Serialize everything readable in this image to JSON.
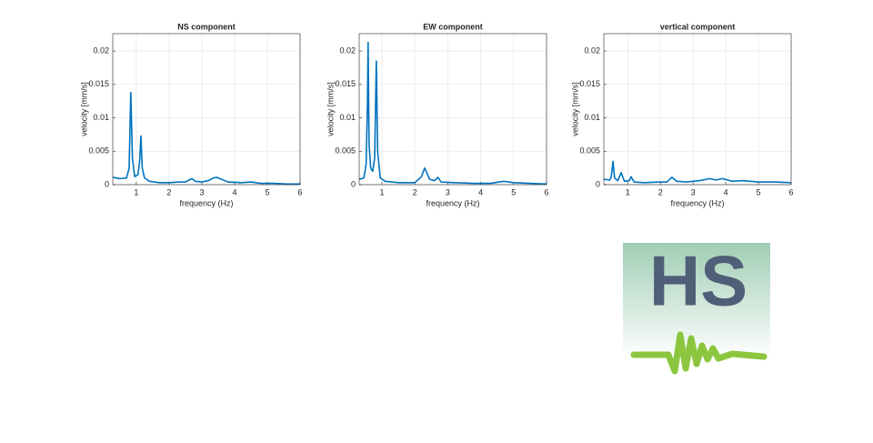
{
  "chart_data": [
    {
      "type": "line",
      "title": "NS component",
      "xlabel": "frequency (Hz)",
      "ylabel": "velocity [mm/s]",
      "x": [
        0.28,
        0.5,
        0.7,
        0.78,
        0.83,
        0.88,
        0.95,
        1.05,
        1.1,
        1.14,
        1.18,
        1.25,
        1.4,
        1.7,
        2.0,
        2.3,
        2.5,
        2.65,
        2.7,
        2.8,
        3.0,
        3.2,
        3.35,
        3.45,
        3.55,
        3.8,
        4.2,
        4.5,
        4.8,
        5.2,
        5.6,
        6.0
      ],
      "values": [
        0.0011,
        0.0009,
        0.001,
        0.0025,
        0.0138,
        0.004,
        0.0012,
        0.0015,
        0.0035,
        0.0073,
        0.0025,
        0.001,
        0.0005,
        0.0003,
        0.0003,
        0.0004,
        0.0004,
        0.0008,
        0.0009,
        0.0005,
        0.0004,
        0.0006,
        0.001,
        0.0011,
        0.0009,
        0.0004,
        0.0003,
        0.0004,
        0.0002,
        0.0002,
        0.0001,
        0.0001
      ],
      "color": "#0072bd",
      "xlim": [
        0.28,
        6
      ],
      "ylim": [
        0,
        0.0226
      ],
      "xticks": [
        1,
        2,
        3,
        4,
        5,
        6
      ],
      "yticks": [
        0,
        0.005,
        0.01,
        0.015,
        0.02
      ],
      "grid": true
    },
    {
      "type": "line",
      "title": "EW component",
      "xlabel": "frequency (Hz)",
      "ylabel": "velocity [mm/s]",
      "x": [
        0.31,
        0.45,
        0.52,
        0.56,
        0.58,
        0.61,
        0.66,
        0.72,
        0.78,
        0.83,
        0.87,
        0.95,
        1.1,
        1.5,
        2.0,
        2.2,
        2.3,
        2.45,
        2.6,
        2.7,
        2.8,
        3.2,
        3.8,
        4.3,
        4.7,
        5.0,
        5.5,
        6.0
      ],
      "values": [
        0.0008,
        0.001,
        0.003,
        0.012,
        0.0213,
        0.006,
        0.0025,
        0.002,
        0.004,
        0.0185,
        0.005,
        0.001,
        0.0005,
        0.0003,
        0.0003,
        0.0012,
        0.0025,
        0.0008,
        0.0006,
        0.0011,
        0.0004,
        0.0003,
        0.0002,
        0.0002,
        0.0005,
        0.0003,
        0.0002,
        0.0001
      ],
      "color": "#0072bd",
      "xlim": [
        0.31,
        6
      ],
      "ylim": [
        0,
        0.0226
      ],
      "xticks": [
        1,
        2,
        3,
        4,
        5,
        6
      ],
      "yticks": [
        0,
        0.005,
        0.01,
        0.015,
        0.02
      ],
      "grid": true
    },
    {
      "type": "line",
      "title": "vertical component",
      "xlabel": "frequency (Hz)",
      "ylabel": "velocity [mm/s]",
      "x": [
        0.27,
        0.45,
        0.5,
        0.55,
        0.6,
        0.7,
        0.8,
        0.9,
        1.05,
        1.1,
        1.2,
        1.5,
        2.0,
        2.2,
        2.35,
        2.5,
        2.8,
        3.2,
        3.5,
        3.7,
        3.9,
        4.2,
        4.5,
        5.0,
        5.5,
        6.0
      ],
      "values": [
        0.0008,
        0.0007,
        0.0012,
        0.0035,
        0.001,
        0.0006,
        0.0018,
        0.0005,
        0.0006,
        0.0012,
        0.0004,
        0.0003,
        0.0004,
        0.0004,
        0.0011,
        0.0005,
        0.0004,
        0.0006,
        0.0009,
        0.0007,
        0.0009,
        0.0005,
        0.0006,
        0.0004,
        0.0004,
        0.0003
      ],
      "color": "#0072bd",
      "xlim": [
        0.27,
        6
      ],
      "ylim": [
        0,
        0.0226
      ],
      "xticks": [
        1,
        2,
        3,
        4,
        5,
        6
      ],
      "yticks": [
        0,
        0.005,
        0.01,
        0.015,
        0.02
      ],
      "grid": true
    }
  ],
  "logo": {
    "text": "HS"
  }
}
